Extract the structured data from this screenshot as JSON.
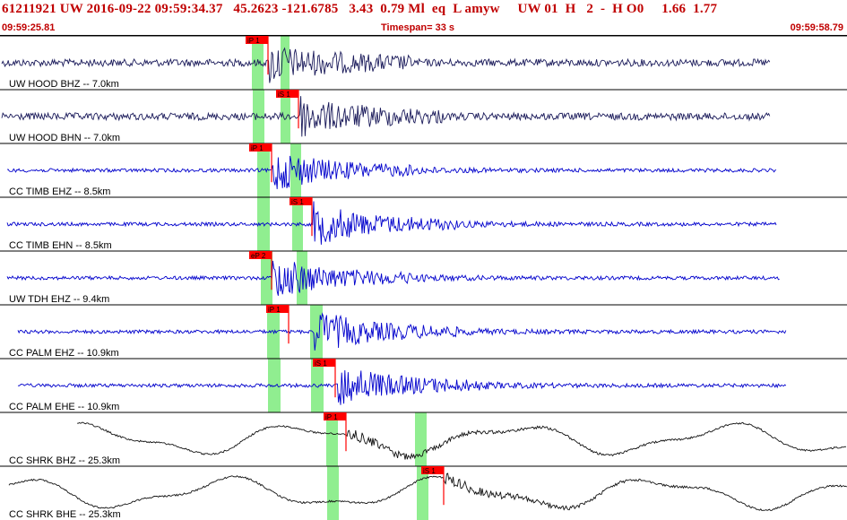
{
  "header": {
    "title": "61211921 UW 2016-09-22 09:59:34.37   45.2623 -121.6785   3.43  0.79 Ml  eq  L amyw     UW 01  H   2  -  H O0     1.66  1.77",
    "time_start": "09:59:25.81",
    "timespan": "Timespan=  33 s",
    "time_end": "09:59:58.79"
  },
  "colors": {
    "header_text": "#c00000",
    "trace_uw": "#1a1a5a",
    "trace_cc": "#0000cc",
    "trace_shrk": "#111111",
    "pick_flag": "#ff0000",
    "window_band": "#90ee90"
  },
  "panels": [
    {
      "label": "UW HOOD BHZ -- 7.0km",
      "pick": "iP 1",
      "pick_kind": "P",
      "wave": "uw"
    },
    {
      "label": "UW HOOD BHN -- 7.0km",
      "pick": "iS 1",
      "pick_kind": "S",
      "wave": "uw"
    },
    {
      "label": "CC TIMB EHZ -- 8.5km",
      "pick": "iP 1",
      "pick_kind": "P",
      "wave": "cc"
    },
    {
      "label": "CC TIMB EHN -- 8.5km",
      "pick": "iS 1",
      "pick_kind": "S",
      "wave": "cc"
    },
    {
      "label": "UW TDH EHZ -- 9.4km",
      "pick": "eP 2",
      "pick_kind": "P",
      "wave": "cc"
    },
    {
      "label": "CC PALM EHZ -- 10.9km",
      "pick": "iP 1",
      "pick_kind": "P",
      "wave": "cc"
    },
    {
      "label": "CC PALM EHE -- 10.9km",
      "pick": "iS 1",
      "pick_kind": "S",
      "wave": "cc"
    },
    {
      "label": "CC SHRK BHZ -- 25.3km",
      "pick": "iP 1",
      "pick_kind": "P",
      "wave": "lp"
    },
    {
      "label": "CC SHRK BHE -- 25.3km",
      "pick": "iS 1",
      "pick_kind": "S",
      "wave": "lp"
    }
  ]
}
